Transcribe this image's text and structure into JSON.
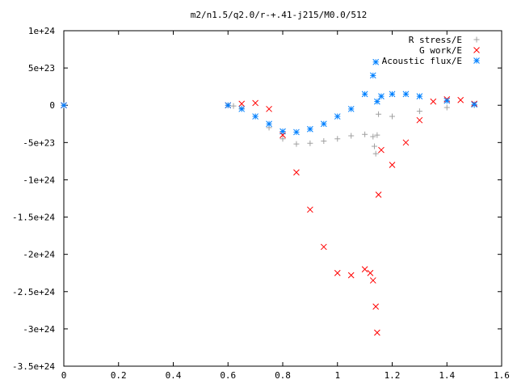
{
  "chart_data": {
    "type": "scatter",
    "title": "m2/n1.5/q2.0/r-+.41-j215/M0.0/512",
    "xlabel": "",
    "ylabel": "",
    "xlim": [
      0,
      1.6
    ],
    "ylim": [
      -3.5e+24,
      1e+24
    ],
    "x_ticks": [
      {
        "value": 0,
        "label": "0"
      },
      {
        "value": 0.2,
        "label": "0.2"
      },
      {
        "value": 0.4,
        "label": "0.4"
      },
      {
        "value": 0.6,
        "label": "0.6"
      },
      {
        "value": 0.8,
        "label": "0.8"
      },
      {
        "value": 1.0,
        "label": "1"
      },
      {
        "value": 1.2,
        "label": "1.2"
      },
      {
        "value": 1.4,
        "label": "1.4"
      },
      {
        "value": 1.6,
        "label": "1.6"
      }
    ],
    "y_ticks": [
      {
        "value": 1e+24,
        "label": "1e+24"
      },
      {
        "value": 5e+23,
        "label": "5e+23"
      },
      {
        "value": 0,
        "label": "0"
      },
      {
        "value": -5e+23,
        "label": "-5e+23"
      },
      {
        "value": -1e+24,
        "label": "-1e+24"
      },
      {
        "value": -1.5e+24,
        "label": "-1.5e+24"
      },
      {
        "value": -2e+24,
        "label": "-2e+24"
      },
      {
        "value": -2.5e+24,
        "label": "-2.5e+24"
      },
      {
        "value": -3e+24,
        "label": "-3e+24"
      },
      {
        "value": -3.5e+24,
        "label": "-3.5e+24"
      }
    ],
    "legend_position": "top-right",
    "grid": false,
    "series": [
      {
        "name": "R stress/E",
        "marker": "plus",
        "color": "#a0a0a0",
        "points": [
          [
            0,
            0
          ],
          [
            0.6,
            0
          ],
          [
            0.62,
            -1e+22
          ],
          [
            0.65,
            -4e+22
          ],
          [
            0.7,
            -1.5e+23
          ],
          [
            0.75,
            -3e+23
          ],
          [
            0.8,
            -4.5e+23
          ],
          [
            0.85,
            -5.2e+23
          ],
          [
            0.9,
            -5.1e+23
          ],
          [
            0.95,
            -4.8e+23
          ],
          [
            1.0,
            -4.5e+23
          ],
          [
            1.05,
            -4.1e+23
          ],
          [
            1.1,
            -3.9e+23
          ],
          [
            1.13,
            -4.2e+23
          ],
          [
            1.135,
            -5.5e+23
          ],
          [
            1.14,
            -6.5e+23
          ],
          [
            1.145,
            -4e+23
          ],
          [
            1.15,
            -1.2e+23
          ],
          [
            1.2,
            -1.5e+23
          ],
          [
            1.3,
            -8e+22
          ],
          [
            1.4,
            -3e+22
          ],
          [
            1.5,
            0
          ]
        ]
      },
      {
        "name": "G work/E",
        "marker": "x",
        "color": "#ff0000",
        "points": [
          [
            0,
            0
          ],
          [
            0.6,
            0
          ],
          [
            0.65,
            2e+22
          ],
          [
            0.7,
            3e+22
          ],
          [
            0.75,
            -5e+22
          ],
          [
            0.8,
            -4e+23
          ],
          [
            0.85,
            -9e+23
          ],
          [
            0.9,
            -1.4e+24
          ],
          [
            0.95,
            -1.9e+24
          ],
          [
            1.0,
            -2.25e+24
          ],
          [
            1.05,
            -2.28e+24
          ],
          [
            1.1,
            -2.2e+24
          ],
          [
            1.12,
            -2.25e+24
          ],
          [
            1.13,
            -2.35e+24
          ],
          [
            1.14,
            -2.7e+24
          ],
          [
            1.145,
            -3.05e+24
          ],
          [
            1.15,
            -1.2e+24
          ],
          [
            1.16,
            -6e+23
          ],
          [
            1.2,
            -8e+23
          ],
          [
            1.25,
            -5e+23
          ],
          [
            1.3,
            -2e+23
          ],
          [
            1.35,
            5e+22
          ],
          [
            1.4,
            8e+22
          ],
          [
            1.45,
            7e+22
          ],
          [
            1.5,
            2e+22
          ]
        ]
      },
      {
        "name": "Acoustic flux/E",
        "marker": "star",
        "color": "#0080ff",
        "points": [
          [
            0,
            0
          ],
          [
            0.6,
            0
          ],
          [
            0.65,
            -5e+22
          ],
          [
            0.7,
            -1.5e+23
          ],
          [
            0.75,
            -2.5e+23
          ],
          [
            0.8,
            -3.5e+23
          ],
          [
            0.85,
            -3.6e+23
          ],
          [
            0.9,
            -3.2e+23
          ],
          [
            0.95,
            -2.5e+23
          ],
          [
            1.0,
            -1.5e+23
          ],
          [
            1.05,
            -5e+22
          ],
          [
            1.1,
            1.5e+23
          ],
          [
            1.13,
            4e+23
          ],
          [
            1.14,
            5.8e+23
          ],
          [
            1.145,
            5e+22
          ],
          [
            1.16,
            1.2e+23
          ],
          [
            1.2,
            1.5e+23
          ],
          [
            1.25,
            1.5e+23
          ],
          [
            1.3,
            1.2e+23
          ],
          [
            1.4,
            6e+22
          ],
          [
            1.5,
            1e+22
          ]
        ]
      }
    ]
  }
}
